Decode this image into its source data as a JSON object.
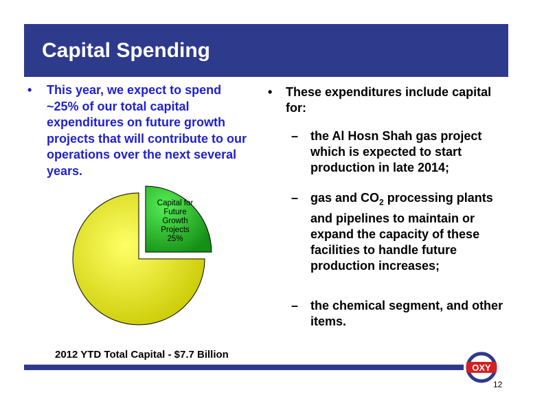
{
  "slide": {
    "title": "Capital Spending",
    "page_number": "12",
    "logo_text": "OXY"
  },
  "left": {
    "bullet": "•",
    "text": "This year, we expect to spend ~25% of our total capital expenditures on future growth projects that will contribute to our operations over the next several years."
  },
  "right": {
    "bullet": "•",
    "intro": "These expenditures include capital for:",
    "dash": "–",
    "items": [
      "the Al Hosn Shah gas project which is expected to start production in late 2014;",
      "gas and CO2 processing plants and pipelines to maintain or expand the capacity of these facilities to handle future production increases;",
      "the chemical segment, and other items."
    ],
    "item2_pre": "gas and CO",
    "item2_sub": "2",
    "item2_post": " processing plants and pipelines to maintain or expand the capacity of these facilities to handle future production increases;"
  },
  "chart_data": {
    "type": "pie",
    "slices": [
      {
        "label": "Capital for Future Growth Projects",
        "value": 25,
        "color": "#22bb22"
      },
      {
        "label": "",
        "value": 75,
        "color": "#e0e000"
      }
    ],
    "slice_label_lines": [
      "Capital for",
      "Future",
      "Growth",
      "Projects",
      "25%"
    ],
    "caption": "2012 YTD Total Capital - $7.7 Billion"
  }
}
